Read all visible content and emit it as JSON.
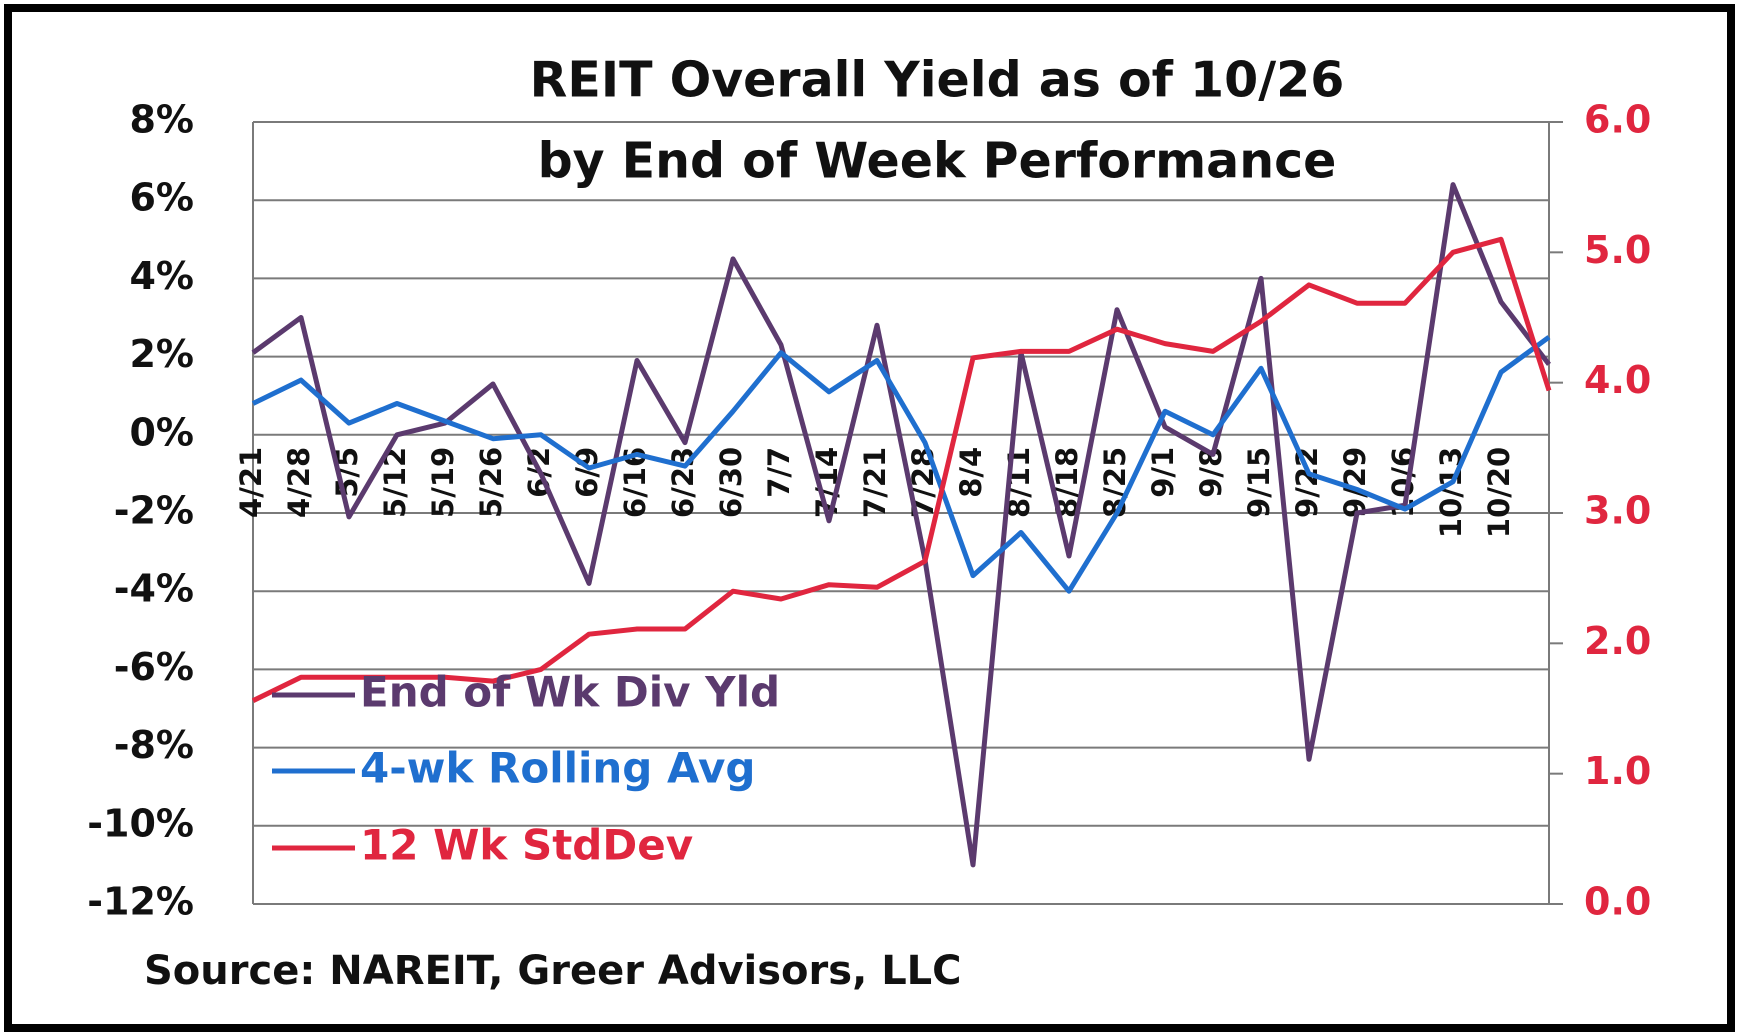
{
  "chart_data": {
    "type": "line",
    "title": [
      "REIT Overall Yield as of 10/26",
      "by End of Week Performance"
    ],
    "source": "Source: NAREIT, Greer Advisors, LLC",
    "categories": [
      "4/21",
      "4/28",
      "5/5",
      "5/12",
      "5/19",
      "5/26",
      "6/2",
      "6/9",
      "6/16",
      "6/23",
      "6/30",
      "7/7",
      "7/14",
      "7/21",
      "7/28",
      "8/4",
      "8/11",
      "8/18",
      "8/25",
      "9/1",
      "9/8",
      "9/15",
      "9/22",
      "9/29",
      "10/6",
      "10/13",
      "10/20",
      null
    ],
    "series": [
      {
        "name": "End of Wk Div Yld",
        "color": "#5b3a6e",
        "values": [
          2.1,
          3.0,
          -2.1,
          0.0,
          0.3,
          1.3,
          -1.0,
          -3.8,
          1.9,
          -0.2,
          4.5,
          2.3,
          -2.2,
          2.8,
          -3.2,
          -11.0,
          2.1,
          -3.1,
          3.2,
          0.2,
          -0.5,
          4.0,
          -8.3,
          -2.0,
          -1.8,
          6.4,
          3.4,
          1.8
        ]
      },
      {
        "name": "4-wk Rolling Avg",
        "color": "#1f6fcf",
        "values": [
          0.8,
          1.4,
          0.3,
          0.8,
          0.35,
          -0.1,
          0.0,
          -0.85,
          -0.5,
          -0.8,
          0.6,
          2.1,
          1.1,
          1.9,
          -0.2,
          -3.6,
          -2.5,
          -4.0,
          -2.0,
          0.6,
          0.0,
          1.7,
          -1.0,
          -1.4,
          -1.9,
          -1.2,
          1.6,
          2.5
        ]
      },
      {
        "name": "12 Wk StdDev",
        "color": "#e0263f",
        "axis": "y2",
        "values": [
          1.56,
          1.74,
          1.74,
          1.74,
          1.74,
          1.71,
          1.8,
          2.07,
          2.11,
          2.11,
          2.4,
          2.34,
          2.45,
          2.43,
          2.63,
          4.19,
          4.24,
          4.24,
          4.41,
          4.3,
          4.24,
          4.47,
          4.75,
          4.61,
          4.61,
          5.0,
          5.1,
          3.94
        ]
      }
    ],
    "ylim": [
      -12,
      8
    ],
    "yticks": [
      {
        "value": -12,
        "label": "-12%"
      },
      {
        "value": -10,
        "label": "-10%"
      },
      {
        "value": -8,
        "label": "-8%"
      },
      {
        "value": -6,
        "label": "-6%"
      },
      {
        "value": -4,
        "label": "-4%"
      },
      {
        "value": -2,
        "label": "-2%"
      },
      {
        "value": 0,
        "label": "0%"
      },
      {
        "value": 2,
        "label": "2%"
      },
      {
        "value": 4,
        "label": "4%"
      },
      {
        "value": 6,
        "label": "6%"
      },
      {
        "value": 8,
        "label": "8%"
      }
    ],
    "y2lim": [
      0,
      6
    ],
    "y2ticks": [
      {
        "value": 0,
        "label": "0.0"
      },
      {
        "value": 1,
        "label": "1.0"
      },
      {
        "value": 2,
        "label": "2.0"
      },
      {
        "value": 3,
        "label": "3.0"
      },
      {
        "value": 4,
        "label": "4.0"
      },
      {
        "value": 5,
        "label": "5.0"
      },
      {
        "value": 6,
        "label": "6.0"
      }
    ],
    "y2color": "#e0263f",
    "grid": true,
    "legend": "lower left"
  }
}
